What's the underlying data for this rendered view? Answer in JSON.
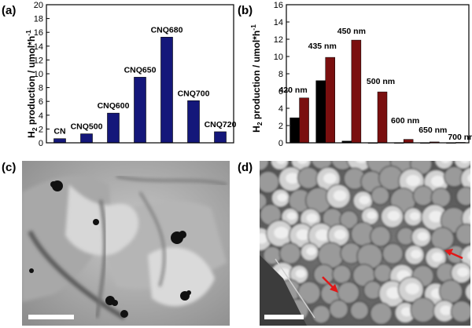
{
  "panels": {
    "a": "(a)",
    "b": "(b)",
    "c": "(c)",
    "d": "(d)"
  },
  "colors": {
    "navy": "#14177a",
    "dark_red": "#7a0f0f",
    "black": "#000000",
    "arrow_red": "#e01818"
  },
  "chart_data": [
    {
      "type": "bar",
      "ylabel": "H2 production / umol*h-1",
      "ylim": [
        0,
        20
      ],
      "yticks": [
        0,
        2,
        4,
        6,
        8,
        10,
        12,
        14,
        16,
        18,
        20
      ],
      "categories": [
        "CN",
        "CNQ500",
        "CNQ600",
        "CNQ650",
        "CNQ680",
        "CNQ700",
        "CNQ720"
      ],
      "values": [
        0.6,
        1.3,
        4.3,
        9.5,
        15.3,
        6.1,
        1.6
      ],
      "grid": false
    },
    {
      "type": "bar",
      "ylabel": "H2 production / umol*h-1",
      "ylim": [
        0,
        16
      ],
      "yticks": [
        0,
        2,
        4,
        6,
        8,
        10,
        12,
        14,
        16
      ],
      "categories": [
        "420 nm",
        "435 nm",
        "450 nm",
        "500 nm",
        "600 nm",
        "650 nm",
        "700 nm"
      ],
      "series": [
        {
          "values": [
            2.9,
            7.2,
            0.2,
            0.0,
            0.0,
            0.0,
            0.0
          ]
        },
        {
          "values": [
            5.2,
            9.9,
            11.9,
            5.9,
            0.4,
            0.1,
            0.05
          ]
        }
      ],
      "grid": false
    }
  ]
}
